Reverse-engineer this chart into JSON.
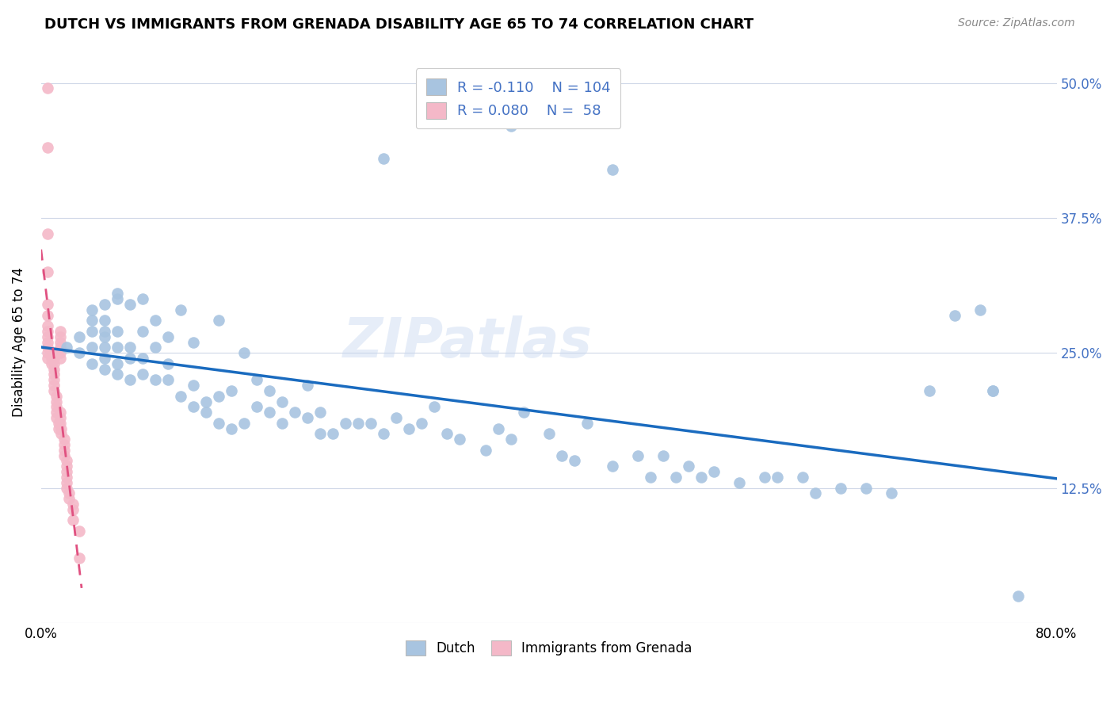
{
  "title": "DUTCH VS IMMIGRANTS FROM GRENADA DISABILITY AGE 65 TO 74 CORRELATION CHART",
  "source": "Source: ZipAtlas.com",
  "ylabel": "Disability Age 65 to 74",
  "xlim": [
    0.0,
    0.8
  ],
  "ylim": [
    0.0,
    0.52
  ],
  "yticks": [
    0.0,
    0.125,
    0.25,
    0.375,
    0.5
  ],
  "ytick_labels": [
    "",
    "12.5%",
    "25.0%",
    "37.5%",
    "50.0%"
  ],
  "xticks": [
    0.0,
    0.1,
    0.2,
    0.3,
    0.4,
    0.5,
    0.6,
    0.7,
    0.8
  ],
  "xtick_labels": [
    "0.0%",
    "",
    "",
    "",
    "",
    "",
    "",
    "",
    "80.0%"
  ],
  "dutch_color": "#a8c4e0",
  "grenada_color": "#f4b8c8",
  "dutch_line_color": "#1a6bbf",
  "grenada_line_color": "#e05080",
  "dutch_R": -0.11,
  "dutch_N": 104,
  "grenada_R": 0.08,
  "grenada_N": 58,
  "watermark": "ZIPatlas",
  "dutch_scatter_x": [
    0.02,
    0.03,
    0.03,
    0.04,
    0.04,
    0.04,
    0.04,
    0.04,
    0.05,
    0.05,
    0.05,
    0.05,
    0.05,
    0.05,
    0.05,
    0.06,
    0.06,
    0.06,
    0.06,
    0.06,
    0.06,
    0.07,
    0.07,
    0.07,
    0.07,
    0.08,
    0.08,
    0.08,
    0.08,
    0.09,
    0.09,
    0.09,
    0.1,
    0.1,
    0.1,
    0.11,
    0.11,
    0.12,
    0.12,
    0.12,
    0.13,
    0.13,
    0.14,
    0.14,
    0.14,
    0.15,
    0.15,
    0.16,
    0.16,
    0.17,
    0.17,
    0.18,
    0.18,
    0.19,
    0.19,
    0.2,
    0.21,
    0.21,
    0.22,
    0.22,
    0.23,
    0.24,
    0.25,
    0.26,
    0.27,
    0.28,
    0.29,
    0.3,
    0.31,
    0.32,
    0.33,
    0.35,
    0.36,
    0.37,
    0.38,
    0.4,
    0.41,
    0.42,
    0.43,
    0.45,
    0.47,
    0.48,
    0.49,
    0.5,
    0.51,
    0.52,
    0.53,
    0.55,
    0.57,
    0.58,
    0.6,
    0.61,
    0.63,
    0.65,
    0.67,
    0.7,
    0.72,
    0.74,
    0.75,
    0.77,
    0.27,
    0.37,
    0.45,
    0.75
  ],
  "dutch_scatter_y": [
    0.255,
    0.25,
    0.265,
    0.24,
    0.255,
    0.27,
    0.28,
    0.29,
    0.235,
    0.245,
    0.255,
    0.265,
    0.27,
    0.28,
    0.295,
    0.23,
    0.24,
    0.255,
    0.27,
    0.3,
    0.305,
    0.225,
    0.245,
    0.255,
    0.295,
    0.23,
    0.245,
    0.27,
    0.3,
    0.225,
    0.255,
    0.28,
    0.225,
    0.24,
    0.265,
    0.21,
    0.29,
    0.2,
    0.22,
    0.26,
    0.195,
    0.205,
    0.185,
    0.21,
    0.28,
    0.18,
    0.215,
    0.185,
    0.25,
    0.2,
    0.225,
    0.195,
    0.215,
    0.185,
    0.205,
    0.195,
    0.19,
    0.22,
    0.175,
    0.195,
    0.175,
    0.185,
    0.185,
    0.185,
    0.175,
    0.19,
    0.18,
    0.185,
    0.2,
    0.175,
    0.17,
    0.16,
    0.18,
    0.17,
    0.195,
    0.175,
    0.155,
    0.15,
    0.185,
    0.145,
    0.155,
    0.135,
    0.155,
    0.135,
    0.145,
    0.135,
    0.14,
    0.13,
    0.135,
    0.135,
    0.135,
    0.12,
    0.125,
    0.125,
    0.12,
    0.215,
    0.285,
    0.29,
    0.215,
    0.025,
    0.43,
    0.46,
    0.42,
    0.215
  ],
  "grenada_scatter_x": [
    0.005,
    0.005,
    0.005,
    0.005,
    0.005,
    0.005,
    0.005,
    0.005,
    0.005,
    0.005,
    0.005,
    0.005,
    0.005,
    0.008,
    0.008,
    0.008,
    0.01,
    0.01,
    0.01,
    0.01,
    0.01,
    0.01,
    0.01,
    0.012,
    0.012,
    0.012,
    0.012,
    0.012,
    0.014,
    0.014,
    0.015,
    0.015,
    0.015,
    0.015,
    0.015,
    0.015,
    0.015,
    0.015,
    0.015,
    0.016,
    0.016,
    0.018,
    0.018,
    0.018,
    0.018,
    0.02,
    0.02,
    0.02,
    0.02,
    0.02,
    0.02,
    0.022,
    0.022,
    0.025,
    0.025,
    0.025,
    0.03,
    0.03
  ],
  "grenada_scatter_y": [
    0.495,
    0.44,
    0.36,
    0.325,
    0.295,
    0.285,
    0.275,
    0.27,
    0.265,
    0.26,
    0.255,
    0.25,
    0.245,
    0.25,
    0.245,
    0.24,
    0.245,
    0.24,
    0.235,
    0.23,
    0.225,
    0.22,
    0.215,
    0.21,
    0.205,
    0.2,
    0.195,
    0.19,
    0.185,
    0.18,
    0.27,
    0.265,
    0.26,
    0.255,
    0.25,
    0.245,
    0.195,
    0.19,
    0.185,
    0.18,
    0.175,
    0.17,
    0.165,
    0.16,
    0.155,
    0.15,
    0.145,
    0.14,
    0.135,
    0.13,
    0.125,
    0.12,
    0.115,
    0.11,
    0.105,
    0.095,
    0.085,
    0.06
  ]
}
